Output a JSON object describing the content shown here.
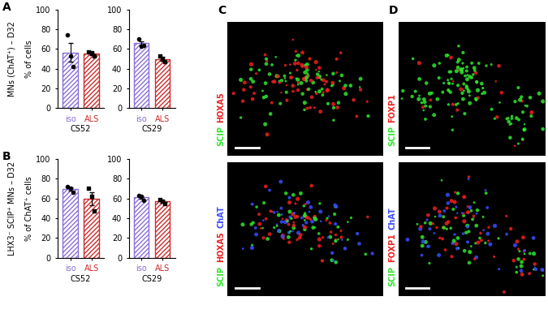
{
  "chart_data": [
    {
      "type": "bar",
      "ylabel": "% of cells",
      "xlabel": "CS52",
      "categories": [
        "iso",
        "ALS"
      ],
      "values": [
        56.3,
        55.3
      ],
      "errors": [
        9.4,
        1.2
      ],
      "points": [
        [
          74,
          53,
          42
        ],
        [
          57,
          56,
          53
        ]
      ],
      "colors": [
        "#8a6fd8",
        "#cc2b2b"
      ],
      "ylim": [
        0,
        100
      ],
      "yticks": [
        0,
        20,
        40,
        60,
        80,
        100
      ]
    },
    {
      "type": "bar",
      "xlabel": "CS29",
      "categories": [
        "iso",
        "ALS"
      ],
      "values": [
        65.7,
        50
      ],
      "errors": [
        2.3,
        1.7
      ],
      "points": [
        [
          70,
          63,
          64
        ],
        [
          53,
          50,
          47
        ]
      ],
      "colors": [
        "#8a6fd8",
        "#cc2b2b"
      ],
      "ylim": [
        0,
        100
      ],
      "yticks": [
        0,
        20,
        40,
        60,
        80,
        100
      ]
    },
    {
      "type": "bar",
      "ylabel": "% of ChAT⁺ cells",
      "xlabel": "CS52",
      "categories": [
        "iso",
        "ALS"
      ],
      "values": [
        69.3,
        59.7
      ],
      "errors": [
        1.8,
        6.7
      ],
      "points": [
        [
          72,
          70,
          66
        ],
        [
          70,
          62,
          47
        ]
      ],
      "colors": [
        "#8a6fd8",
        "#cc2b2b"
      ],
      "ylim": [
        0,
        100
      ],
      "yticks": [
        0,
        20,
        40,
        60,
        80,
        100
      ]
    },
    {
      "type": "bar",
      "xlabel": "CS29",
      "categories": [
        "iso",
        "ALS"
      ],
      "values": [
        61,
        57
      ],
      "errors": [
        1.5,
        1.2
      ],
      "points": [
        [
          63,
          62,
          58
        ],
        [
          59,
          57,
          55
        ]
      ],
      "colors": [
        "#8a6fd8",
        "#cc2b2b"
      ],
      "ylim": [
        0,
        100
      ],
      "yticks": [
        0,
        20,
        40,
        60,
        80,
        100
      ]
    }
  ],
  "rows": [
    {
      "panel": "A",
      "label": "MNs (ChAT⁺) – D32"
    },
    {
      "panel": "B",
      "label": "LHX3⁻ SCIP⁺ MNs – D32"
    }
  ],
  "images": [
    {
      "panel": "C",
      "stains": [
        [
          "SCIP",
          "HOXA5"
        ],
        [
          "SCIP",
          "HOXA5",
          "ChAT"
        ]
      ]
    },
    {
      "panel": "D",
      "stains": [
        [
          "SCIP",
          "FOXP1"
        ],
        [
          "SCIP",
          "FOXP1",
          "ChAT"
        ]
      ]
    }
  ],
  "stain_colors": {
    "SCIP": "#2ee62e",
    "HOXA5": "#ee2020",
    "FOXP1": "#ee2020",
    "ChAT": "#3a4dff"
  }
}
